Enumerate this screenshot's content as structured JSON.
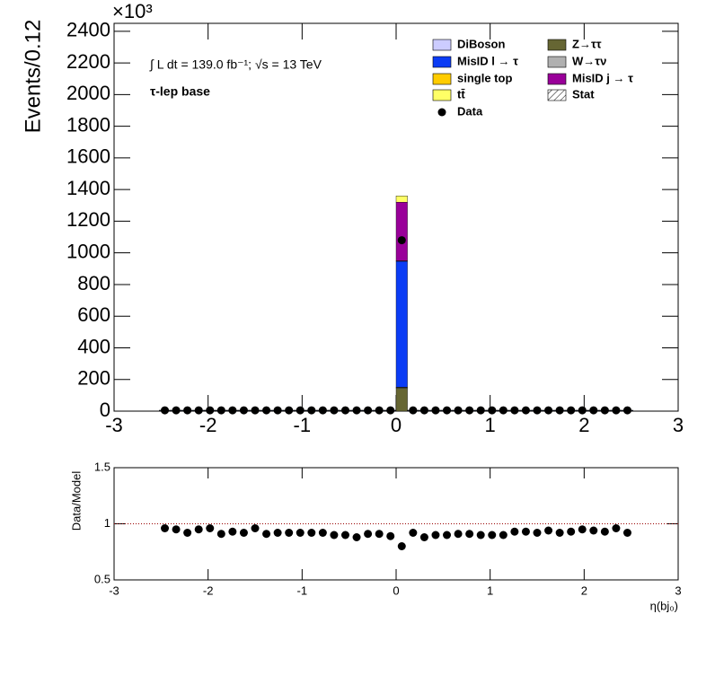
{
  "chart_data": [
    {
      "type": "histogram",
      "ylabel": "Events/0.12",
      "y_multiplier": "×10³",
      "annotations": [
        "∫ L dt = 139.0 fb⁻¹;  √s = 13 TeV",
        "τ-lep base"
      ],
      "bins": [
        -2.52,
        -2.4,
        -2.28,
        -2.16,
        -2.04,
        -1.92,
        -1.8,
        -1.68,
        -1.56,
        -1.44,
        -1.32,
        -1.2,
        -1.08,
        -0.96,
        -0.84,
        -0.72,
        -0.6,
        -0.48,
        -0.36,
        -0.24,
        -0.12,
        0,
        0.12,
        0.24,
        0.36,
        0.48,
        0.6,
        0.72,
        0.84,
        0.96,
        1.08,
        1.2,
        1.32,
        1.44,
        1.56,
        1.68,
        1.8,
        1.92,
        2.04,
        2.16,
        2.28,
        2.4,
        2.52
      ],
      "series": [
        {
          "name": "Z→ττ",
          "color": "#666633",
          "values": [
            0.5,
            0.5,
            0.5,
            0.5,
            0.5,
            0.5,
            0.5,
            0.5,
            0.5,
            0.5,
            0.5,
            0.5,
            0.5,
            0.5,
            0.5,
            0.5,
            0.5,
            0.5,
            0.5,
            0.5,
            0.5,
            145,
            0.5,
            0.5,
            0.5,
            0.5,
            0.5,
            0.5,
            0.5,
            0.5,
            0.5,
            0.5,
            0.5,
            0.5,
            0.5,
            0.5,
            0.5,
            0.5,
            0.5,
            0.5,
            0.5,
            0.5
          ]
        },
        {
          "name": "W→τν",
          "color": "#b0b0b0",
          "values": [
            0.1,
            0.1,
            0.1,
            0.1,
            0.1,
            0.1,
            0.1,
            0.1,
            0.1,
            0.1,
            0.1,
            0.1,
            0.1,
            0.1,
            0.1,
            0.1,
            0.1,
            0.1,
            0.1,
            0.1,
            0.1,
            5,
            0.1,
            0.1,
            0.1,
            0.1,
            0.1,
            0.1,
            0.1,
            0.1,
            0.1,
            0.1,
            0.1,
            0.1,
            0.1,
            0.1,
            0.1,
            0.1,
            0.1,
            0.1,
            0.1,
            0.1
          ]
        },
        {
          "name": "DiBoson",
          "color": "#ccccff",
          "values": [
            0.05,
            0.05,
            0.05,
            0.05,
            0.05,
            0.05,
            0.05,
            0.05,
            0.05,
            0.05,
            0.05,
            0.05,
            0.05,
            0.05,
            0.05,
            0.05,
            0.05,
            0.05,
            0.05,
            0.05,
            0.05,
            2,
            0.05,
            0.05,
            0.05,
            0.05,
            0.05,
            0.05,
            0.05,
            0.05,
            0.05,
            0.05,
            0.05,
            0.05,
            0.05,
            0.05,
            0.05,
            0.05,
            0.05,
            0.05,
            0.05,
            0.05
          ]
        },
        {
          "name": "MisID l → τ",
          "color": "#0b3cf5",
          "values": [
            3,
            3,
            3,
            3,
            3,
            3,
            3,
            3,
            3,
            3,
            3,
            3,
            3,
            3,
            3,
            3,
            3,
            3,
            3,
            3,
            3,
            795,
            3,
            3,
            3,
            3,
            3,
            3,
            3,
            3,
            3,
            3,
            3,
            3,
            3,
            3,
            3,
            3,
            3,
            3,
            3,
            3
          ]
        },
        {
          "name": "single top",
          "color": "#ffcc00",
          "values": [
            0.1,
            0.1,
            0.1,
            0.1,
            0.1,
            0.1,
            0.1,
            0.1,
            0.1,
            0.1,
            0.1,
            0.1,
            0.1,
            0.1,
            0.1,
            0.1,
            0.1,
            0.1,
            0.1,
            0.1,
            0.1,
            3,
            0.1,
            0.1,
            0.1,
            0.1,
            0.1,
            0.1,
            0.1,
            0.1,
            0.1,
            0.1,
            0.1,
            0.1,
            0.1,
            0.1,
            0.1,
            0.1,
            0.1,
            0.1,
            0.1,
            0.1
          ]
        },
        {
          "name": "MisID j → τ",
          "color": "#990099",
          "values": [
            1.5,
            1.5,
            1.5,
            1.5,
            1.5,
            1.5,
            1.5,
            1.5,
            1.5,
            1.5,
            1.5,
            1.5,
            1.5,
            1.5,
            1.5,
            1.5,
            1.5,
            1.5,
            1.5,
            1.5,
            1.5,
            370,
            1.5,
            1.5,
            1.5,
            1.5,
            1.5,
            1.5,
            1.5,
            1.5,
            1.5,
            1.5,
            1.5,
            1.5,
            1.5,
            1.5,
            1.5,
            1.5,
            1.5,
            1.5,
            1.5,
            1.5
          ]
        },
        {
          "name": "tt̄",
          "color": "#ffff66",
          "values": [
            0.5,
            0.5,
            0.5,
            0.5,
            0.5,
            0.5,
            0.5,
            0.5,
            0.5,
            0.5,
            0.5,
            0.5,
            0.5,
            0.5,
            0.5,
            0.5,
            0.5,
            0.5,
            0.5,
            0.5,
            0.5,
            40,
            0.5,
            0.5,
            0.5,
            0.5,
            0.5,
            0.5,
            0.5,
            0.5,
            0.5,
            0.5,
            0.5,
            0.5,
            0.5,
            0.5,
            0.5,
            0.5,
            0.5,
            0.5,
            0.5,
            0.5
          ]
        }
      ],
      "data": {
        "name": "Data",
        "color": "#000000",
        "values": [
          5.3,
          5.3,
          5.3,
          5.3,
          5.3,
          5.3,
          5.3,
          5.3,
          5.3,
          5.3,
          5.3,
          5.3,
          5.3,
          5.3,
          5.3,
          5.3,
          5.3,
          5.3,
          5.3,
          5.3,
          5.3,
          1080,
          5.3,
          5.3,
          5.3,
          5.3,
          5.3,
          5.3,
          5.3,
          5.3,
          5.3,
          5.3,
          5.3,
          5.3,
          5.3,
          5.3,
          5.3,
          5.3,
          5.3,
          5.3,
          5.3,
          5.3
        ]
      },
      "error_band": {
        "name": "Stat"
      },
      "xlim": [
        -3,
        3
      ],
      "xticks": [
        -3,
        -2,
        -1,
        0,
        1,
        2,
        3
      ],
      "ylim": [
        0,
        2450
      ],
      "yticks": [
        0,
        200,
        400,
        600,
        800,
        1000,
        1200,
        1400,
        1600,
        1800,
        2000,
        2200,
        2400
      ]
    },
    {
      "type": "scatter",
      "ylabel": "Data/Model",
      "xlabel": "η(bj₀)",
      "x": [
        -2.46,
        -2.34,
        -2.22,
        -2.1,
        -1.98,
        -1.86,
        -1.74,
        -1.62,
        -1.5,
        -1.38,
        -1.26,
        -1.14,
        -1.02,
        -0.9,
        -0.78,
        -0.66,
        -0.54,
        -0.42,
        -0.3,
        -0.18,
        -0.06,
        0.06,
        0.18,
        0.3,
        0.42,
        0.54,
        0.66,
        0.78,
        0.9,
        1.02,
        1.14,
        1.26,
        1.38,
        1.5,
        1.62,
        1.74,
        1.86,
        1.98,
        2.1,
        2.22,
        2.34,
        2.46
      ],
      "values": [
        0.96,
        0.95,
        0.92,
        0.95,
        0.96,
        0.91,
        0.93,
        0.92,
        0.96,
        0.91,
        0.92,
        0.92,
        0.92,
        0.92,
        0.92,
        0.9,
        0.9,
        0.88,
        0.91,
        0.91,
        0.89,
        0.8,
        0.92,
        0.88,
        0.9,
        0.9,
        0.91,
        0.91,
        0.9,
        0.9,
        0.9,
        0.93,
        0.93,
        0.92,
        0.94,
        0.92,
        0.93,
        0.95,
        0.94,
        0.93,
        0.96,
        0.92
      ],
      "color": "#000000",
      "reference_line": 1,
      "reference_color": "#990000",
      "xlim": [
        -3,
        3
      ],
      "xticks": [
        -3,
        -2,
        -1,
        0,
        1,
        2,
        3
      ],
      "ylim": [
        0.5,
        1.5
      ],
      "yticks": [
        0.5,
        1,
        1.5
      ]
    }
  ]
}
